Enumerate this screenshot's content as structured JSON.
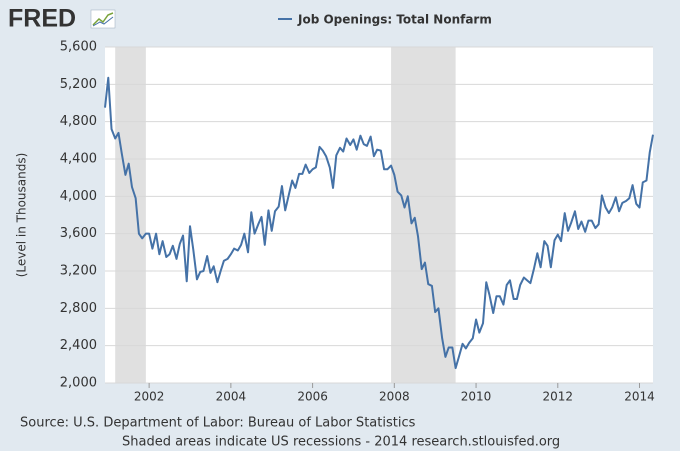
{
  "logo": "FRED",
  "chart_data": {
    "type": "line",
    "y_label": "(Level in Thousands)",
    "source": "Source: U.S. Department of Labor: Bureau of Labor Statistics",
    "note": "Shaded areas indicate US recessions - 2014 research.stlouisfed.org",
    "x": [
      2000.92,
      2001,
      2001.08,
      2001.17,
      2001.25,
      2001.33,
      2001.42,
      2001.5,
      2001.58,
      2001.67,
      2001.75,
      2001.83,
      2001.92,
      2002,
      2002.08,
      2002.17,
      2002.25,
      2002.33,
      2002.42,
      2002.5,
      2002.58,
      2002.67,
      2002.75,
      2002.83,
      2002.92,
      2003,
      2003.08,
      2003.17,
      2003.25,
      2003.33,
      2003.42,
      2003.5,
      2003.58,
      2003.67,
      2003.75,
      2003.83,
      2003.92,
      2004,
      2004.08,
      2004.17,
      2004.25,
      2004.33,
      2004.42,
      2004.5,
      2004.58,
      2004.67,
      2004.75,
      2004.83,
      2004.92,
      2005,
      2005.08,
      2005.17,
      2005.25,
      2005.33,
      2005.42,
      2005.5,
      2005.58,
      2005.67,
      2005.75,
      2005.83,
      2005.92,
      2006,
      2006.08,
      2006.17,
      2006.25,
      2006.33,
      2006.42,
      2006.5,
      2006.58,
      2006.67,
      2006.75,
      2006.83,
      2006.92,
      2007,
      2007.08,
      2007.17,
      2007.25,
      2007.33,
      2007.42,
      2007.5,
      2007.58,
      2007.67,
      2007.75,
      2007.83,
      2007.92,
      2008,
      2008.08,
      2008.17,
      2008.25,
      2008.33,
      2008.42,
      2008.5,
      2008.58,
      2008.67,
      2008.75,
      2008.83,
      2008.92,
      2009,
      2009.08,
      2009.17,
      2009.25,
      2009.33,
      2009.42,
      2009.5,
      2009.58,
      2009.67,
      2009.75,
      2009.83,
      2009.92,
      2010,
      2010.08,
      2010.17,
      2010.25,
      2010.33,
      2010.42,
      2010.5,
      2010.58,
      2010.67,
      2010.75,
      2010.83,
      2010.92,
      2011,
      2011.08,
      2011.17,
      2011.25,
      2011.33,
      2011.42,
      2011.5,
      2011.58,
      2011.67,
      2011.75,
      2011.83,
      2011.92,
      2012,
      2012.08,
      2012.17,
      2012.25,
      2012.33,
      2012.42,
      2012.5,
      2012.58,
      2012.67,
      2012.75,
      2012.83,
      2012.92,
      2013,
      2013.08,
      2013.17,
      2013.25,
      2013.33,
      2013.42,
      2013.5,
      2013.58,
      2013.67,
      2013.75,
      2013.83,
      2013.92,
      2014,
      2014.08,
      2014.17,
      2014.25,
      2014.33
    ],
    "series": [
      {
        "name": "Job Openings: Total Nonfarm",
        "color": "#4572a7",
        "values": [
          4950,
          5270,
          4720,
          4620,
          4680,
          4460,
          4230,
          4350,
          4100,
          3980,
          3600,
          3550,
          3600,
          3600,
          3440,
          3600,
          3380,
          3520,
          3350,
          3380,
          3470,
          3330,
          3490,
          3580,
          3090,
          3680,
          3430,
          3110,
          3190,
          3200,
          3360,
          3180,
          3250,
          3080,
          3200,
          3310,
          3330,
          3380,
          3440,
          3420,
          3480,
          3600,
          3400,
          3830,
          3600,
          3700,
          3780,
          3480,
          3850,
          3630,
          3840,
          3890,
          4110,
          3850,
          4020,
          4170,
          4090,
          4240,
          4240,
          4340,
          4250,
          4290,
          4310,
          4530,
          4490,
          4430,
          4310,
          4090,
          4440,
          4520,
          4480,
          4620,
          4550,
          4610,
          4500,
          4650,
          4560,
          4540,
          4640,
          4430,
          4500,
          4490,
          4290,
          4290,
          4330,
          4230,
          4050,
          4010,
          3880,
          4000,
          3710,
          3770,
          3570,
          3220,
          3290,
          3060,
          3040,
          2760,
          2800,
          2480,
          2280,
          2380,
          2380,
          2160,
          2280,
          2420,
          2370,
          2430,
          2480,
          2680,
          2540,
          2640,
          3080,
          2940,
          2750,
          2930,
          2930,
          2840,
          3050,
          3100,
          2900,
          2900,
          3050,
          3130,
          3100,
          3070,
          3230,
          3390,
          3240,
          3520,
          3470,
          3240,
          3530,
          3590,
          3520,
          3820,
          3630,
          3720,
          3840,
          3650,
          3730,
          3620,
          3740,
          3740,
          3660,
          3700,
          4010,
          3880,
          3820,
          3880,
          3990,
          3840,
          3930,
          3950,
          3980,
          4120,
          3920,
          3880,
          4150,
          4170,
          4470,
          4660
        ]
      }
    ],
    "recessions": [
      [
        2001.17,
        2001.92
      ],
      [
        2007.92,
        2009.5
      ]
    ],
    "xlim": [
      2000.92,
      2014.33
    ],
    "xticks": [
      2002,
      2004,
      2006,
      2008,
      2010,
      2012,
      2014
    ],
    "ylim": [
      2000,
      5600
    ],
    "yticks": [
      {
        "value": 2000,
        "label": "2,000"
      },
      {
        "value": 2400,
        "label": "2,400"
      },
      {
        "value": 2800,
        "label": "2,800"
      },
      {
        "value": 3200,
        "label": "3,200"
      },
      {
        "value": 3600,
        "label": "3,600"
      },
      {
        "value": 4000,
        "label": "4,000"
      },
      {
        "value": 4400,
        "label": "4,400"
      },
      {
        "value": 4800,
        "label": "4,800"
      },
      {
        "value": 5200,
        "label": "5,200"
      },
      {
        "value": 5600,
        "label": "5,600"
      }
    ],
    "grid": true
  }
}
